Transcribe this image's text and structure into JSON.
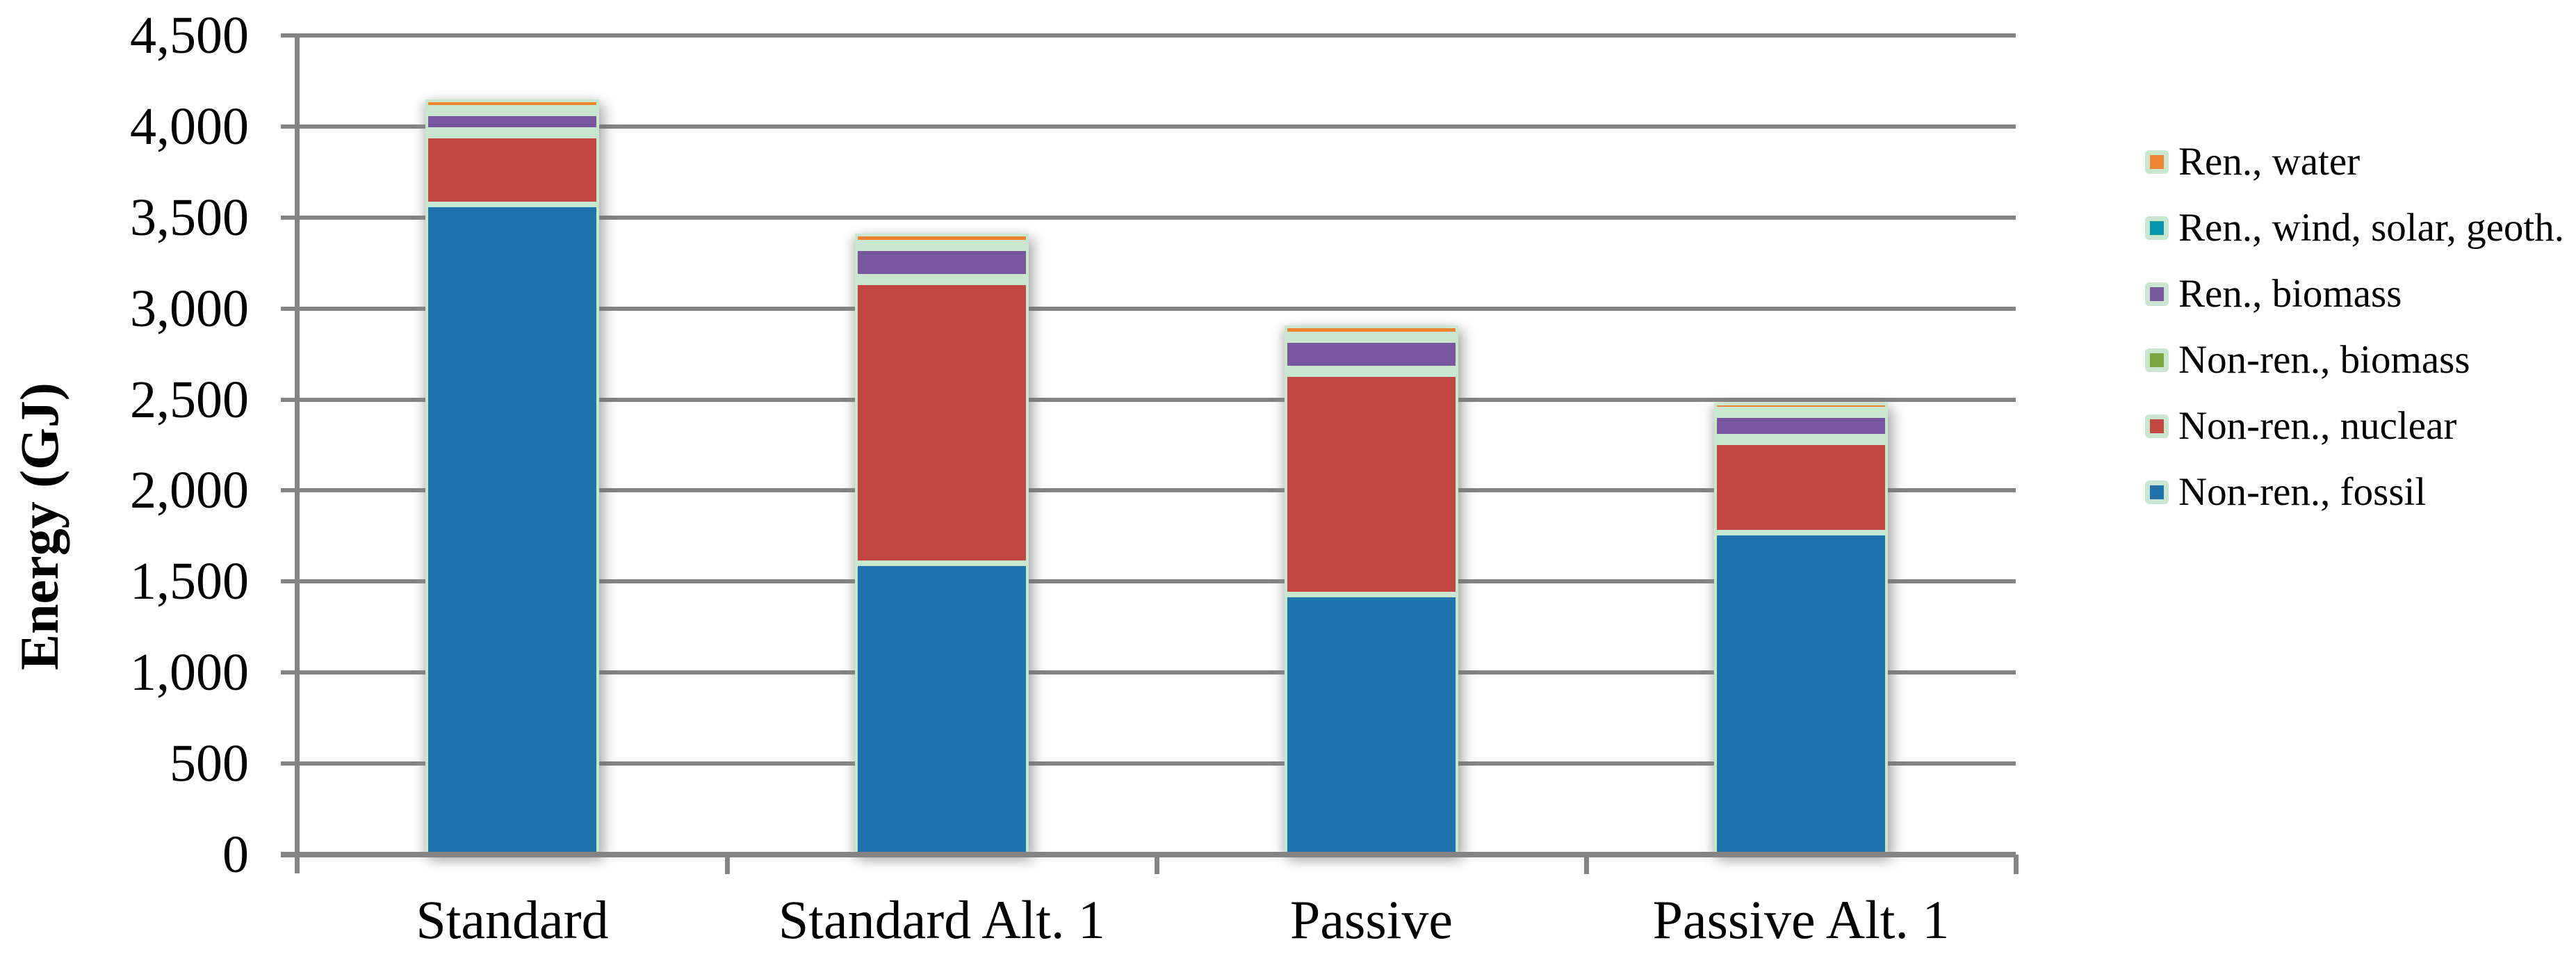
{
  "chart_data": {
    "type": "bar",
    "stacked": true,
    "title": "",
    "xlabel": "",
    "ylabel": "Energy (GJ)",
    "ylim": [
      0,
      4500
    ],
    "ytick_step": 500,
    "ytick_labels_bottom_to_top": [
      "0",
      "500",
      "1,000",
      "1,500",
      "2,000",
      "2,500",
      "3,000",
      "3,500",
      "4,000",
      "4,500"
    ],
    "categories": [
      "Standard",
      "Standard Alt. 1",
      "Passive",
      "Passive Alt. 1"
    ],
    "series_bottom_to_top": [
      {
        "name": "Non-ren., fossil",
        "color": "#1E73AC",
        "values": [
          3570,
          1600,
          1430,
          1770
        ]
      },
      {
        "name": "Non-ren., nuclear",
        "color": "#C24740",
        "values": [
          380,
          1545,
          1210,
          495
        ]
      },
      {
        "name": "Non-ren., biomass",
        "color": "#7BA63F",
        "values": [
          10,
          10,
          10,
          10
        ]
      },
      {
        "name": "Ren., biomass",
        "color": "#78579F",
        "values": [
          90,
          155,
          155,
          120
        ]
      },
      {
        "name": "Ren., wind, solar, geoth.",
        "color": "#0796AC",
        "values": [
          15,
          25,
          25,
          20
        ]
      },
      {
        "name": "Ren., water",
        "color": "#EE8430",
        "values": [
          45,
          50,
          50,
          40
        ]
      }
    ],
    "totals": [
      4110,
      3385,
      2880,
      2455
    ],
    "legend": {
      "position": "right",
      "entries_top_to_bottom": [
        "Ren., water",
        "Ren., wind, solar, geoth.",
        "Ren., biomass",
        "Non-ren., biomass",
        "Non-ren., nuclear",
        "Non-ren., fossil"
      ]
    },
    "grid": true,
    "colors": {
      "axis": "#848484",
      "gridline": "#848484",
      "bar_border": "#C9E6CE",
      "text": "#000000",
      "background": "#FFFFFF"
    }
  }
}
